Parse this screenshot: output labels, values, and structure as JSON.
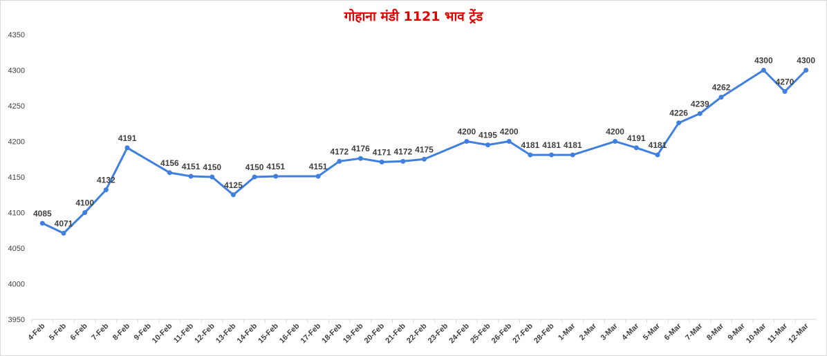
{
  "chart_data": {
    "type": "line",
    "title": "गोहाना मंडी 1121 भाव ट्रेंड",
    "xlabel": "",
    "ylabel": "",
    "ylim": [
      3950,
      4350
    ],
    "ytick_step": 50,
    "grid": false,
    "legend": "none",
    "colors": {
      "line": "#3f7fe0",
      "title": "#e00000"
    },
    "categories": [
      "4-Feb",
      "5-Feb",
      "6-Feb",
      "7-Feb",
      "8-Feb",
      "9-Feb",
      "10-Feb",
      "11-Feb",
      "12-Feb",
      "13-Feb",
      "14-Feb",
      "15-Feb",
      "16-Feb",
      "17-Feb",
      "18-Feb",
      "19-Feb",
      "20-Feb",
      "21-Feb",
      "22-Feb",
      "23-Feb",
      "24-Feb",
      "25-Feb",
      "26-Feb",
      "27-Feb",
      "28-Feb",
      "1-Mar",
      "2-Mar",
      "3-Mar",
      "4-Mar",
      "5-Mar",
      "6-Mar",
      "7-Mar",
      "8-Mar",
      "9-Mar",
      "10-Mar",
      "11-Mar",
      "12-Mar"
    ],
    "series": [
      {
        "values": [
          4085,
          4071,
          4100,
          4132,
          4191,
          null,
          4156,
          4151,
          4150,
          4125,
          4150,
          4151,
          null,
          4151,
          4172,
          4176,
          4171,
          4172,
          4175,
          null,
          4200,
          4195,
          4200,
          4181,
          4181,
          4181,
          null,
          4200,
          4191,
          4181,
          4226,
          4239,
          4262,
          null,
          4300,
          4270,
          4300
        ]
      }
    ]
  }
}
